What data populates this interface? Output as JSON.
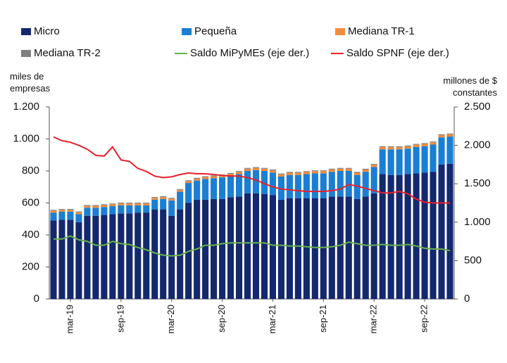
{
  "chart_data": {
    "type": "stacked_bar_line",
    "y_label": "miles de empresas",
    "y2_label": "millones de $ constantes",
    "categories": [
      null,
      null,
      "mar-19",
      null,
      null,
      null,
      null,
      null,
      "sep-19",
      null,
      null,
      null,
      null,
      null,
      "mar-20",
      null,
      null,
      null,
      null,
      null,
      "sep-20",
      null,
      null,
      null,
      null,
      null,
      "mar-21",
      null,
      null,
      null,
      null,
      null,
      "sep-21",
      null,
      null,
      null,
      null,
      null,
      "mar-22",
      null,
      null,
      null,
      null,
      null,
      "sep-22",
      null,
      null,
      null
    ],
    "series": [
      {
        "name": "Micro",
        "color": "#14286e",
        "type": "bar",
        "values": [
          490,
          495,
          495,
          480,
          520,
          520,
          525,
          530,
          535,
          535,
          540,
          540,
          560,
          560,
          520,
          560,
          600,
          620,
          620,
          625,
          625,
          635,
          640,
          660,
          660,
          655,
          650,
          620,
          630,
          630,
          630,
          630,
          630,
          640,
          640,
          640,
          625,
          640,
          660,
          780,
          775,
          775,
          780,
          785,
          790,
          795,
          840,
          845
        ]
      },
      {
        "name": "Pequeña",
        "color": "#1a7fd4",
        "type": "bar",
        "values": [
          50,
          50,
          50,
          50,
          50,
          50,
          50,
          50,
          50,
          50,
          45,
          45,
          60,
          65,
          95,
          110,
          125,
          120,
          130,
          130,
          135,
          135,
          140,
          140,
          145,
          145,
          140,
          145,
          145,
          145,
          150,
          155,
          155,
          155,
          160,
          160,
          150,
          155,
          165,
          155,
          160,
          160,
          160,
          165,
          165,
          170,
          170,
          170
        ]
      },
      {
        "name": "Mediana TR-1",
        "color": "#f28c3c",
        "type": "bar",
        "values": [
          12,
          12,
          12,
          12,
          12,
          12,
          12,
          12,
          12,
          12,
          12,
          12,
          12,
          12,
          12,
          12,
          12,
          12,
          12,
          12,
          12,
          12,
          14,
          14,
          14,
          14,
          14,
          14,
          14,
          14,
          14,
          14,
          14,
          14,
          14,
          14,
          14,
          14,
          14,
          14,
          14,
          14,
          14,
          14,
          14,
          14,
          14,
          14
        ]
      },
      {
        "name": "Mediana TR-2",
        "color": "#808080",
        "type": "bar",
        "values": [
          5,
          5,
          5,
          5,
          5,
          5,
          5,
          5,
          5,
          5,
          5,
          5,
          5,
          5,
          5,
          5,
          5,
          5,
          5,
          5,
          5,
          5,
          5,
          5,
          5,
          5,
          5,
          5,
          5,
          5,
          5,
          5,
          5,
          5,
          5,
          5,
          5,
          5,
          5,
          5,
          5,
          5,
          5,
          5,
          5,
          5,
          5,
          5
        ]
      },
      {
        "name": "Saldo MiPyMEs (eje der.)",
        "color": "#6ab04c",
        "type": "line",
        "axis": "y2",
        "values": [
          780,
          780,
          820,
          770,
          750,
          700,
          700,
          750,
          720,
          710,
          670,
          640,
          600,
          570,
          560,
          570,
          620,
          650,
          700,
          700,
          720,
          730,
          730,
          730,
          730,
          730,
          700,
          700,
          690,
          690,
          680,
          670,
          670,
          680,
          700,
          740,
          720,
          700,
          700,
          710,
          700,
          700,
          710,
          690,
          660,
          650,
          650,
          630
        ]
      },
      {
        "name": "Saldo SPNF (eje der.)",
        "color": "#e8202a",
        "type": "line",
        "axis": "y2",
        "values": [
          2110,
          2060,
          2040,
          2000,
          1950,
          1870,
          1860,
          1980,
          1810,
          1790,
          1700,
          1660,
          1600,
          1580,
          1590,
          1620,
          1640,
          1630,
          1630,
          1620,
          1610,
          1600,
          1600,
          1580,
          1550,
          1500,
          1460,
          1430,
          1420,
          1410,
          1400,
          1400,
          1400,
          1410,
          1430,
          1490,
          1470,
          1440,
          1410,
          1380,
          1380,
          1400,
          1370,
          1300,
          1260,
          1250,
          1250,
          1250
        ]
      }
    ],
    "ylim": [
      0,
      1200
    ],
    "yticks": [
      0,
      200,
      400,
      600,
      800,
      {
        "value": 1000,
        "label": "1.000"
      },
      {
        "value": 1200,
        "label": "1.200"
      }
    ],
    "y2lim": [
      0,
      2500
    ],
    "y2ticks": [
      0,
      500,
      {
        "value": 1000,
        "label": "1.000"
      },
      {
        "value": 1500,
        "label": "1.500"
      },
      {
        "value": 2000,
        "label": "2.000"
      },
      {
        "value": 2500,
        "label": "2.500"
      }
    ],
    "grid": false
  }
}
